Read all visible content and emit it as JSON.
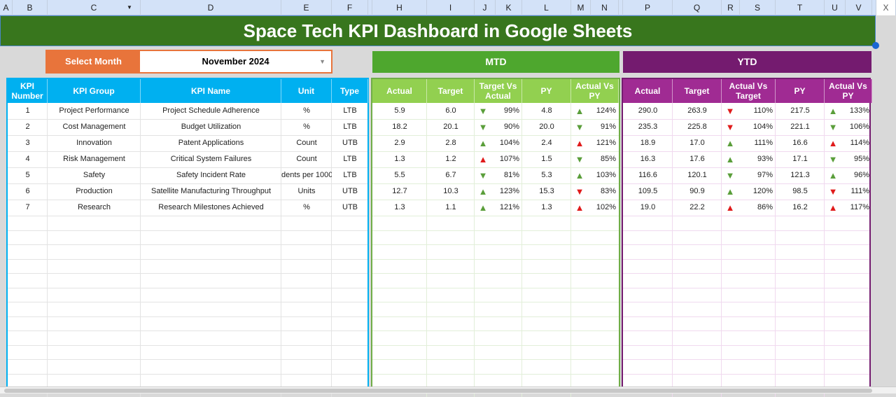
{
  "columns": [
    "A",
    "B",
    "C",
    "D",
    "E",
    "F",
    "",
    "H",
    "I",
    "J",
    "K",
    "L",
    "M",
    "N",
    "",
    "P",
    "Q",
    "R",
    "S",
    "T",
    "U",
    "V",
    "",
    "X"
  ],
  "title": "Space Tech KPI Dashboard in Google Sheets",
  "select_month": {
    "label": "Select Month",
    "value": "November 2024"
  },
  "mtd": {
    "label": "MTD",
    "color": "#4ea72e",
    "header_color": "#92d050",
    "headers": [
      "Actual",
      "Target",
      "Target Vs Actual",
      "PY",
      "Actual Vs PY"
    ]
  },
  "ytd": {
    "label": "YTD",
    "color": "#741b6f",
    "header_color": "#a02b93",
    "headers": [
      "Actual",
      "Target",
      "Actual Vs Target",
      "PY",
      "Actual Vs PY"
    ]
  },
  "kpi": {
    "header_color": "#00b0f0",
    "headers": [
      "KPI Number",
      "KPI Group",
      "KPI Name",
      "Unit",
      "Type"
    ]
  },
  "colors": {
    "green_arrow": "#5a9e3a",
    "red_arrow": "#e01b1b"
  },
  "rows": [
    {
      "num": "1",
      "group": "Project Performance",
      "name": "Project Schedule Adherence",
      "unit": "%",
      "type": "LTB",
      "mtd": [
        "5.9",
        "6.0",
        [
          "down",
          "green",
          "99%"
        ],
        "4.8",
        [
          "up",
          "green",
          "124%"
        ]
      ],
      "ytd": [
        "290.0",
        "263.9",
        [
          "down",
          "red",
          "110%"
        ],
        "217.5",
        [
          "up",
          "green",
          "133%"
        ]
      ]
    },
    {
      "num": "2",
      "group": "Cost Management",
      "name": "Budget Utilization",
      "unit": "%",
      "type": "LTB",
      "mtd": [
        "18.2",
        "20.1",
        [
          "down",
          "green",
          "90%"
        ],
        "20.0",
        [
          "down",
          "green",
          "91%"
        ]
      ],
      "ytd": [
        "235.3",
        "225.8",
        [
          "down",
          "red",
          "104%"
        ],
        "221.1",
        [
          "down",
          "green",
          "106%"
        ]
      ]
    },
    {
      "num": "3",
      "group": "Innovation",
      "name": "Patent Applications",
      "unit": "Count",
      "type": "UTB",
      "mtd": [
        "2.9",
        "2.8",
        [
          "up",
          "green",
          "104%"
        ],
        "2.4",
        [
          "up",
          "red",
          "121%"
        ]
      ],
      "ytd": [
        "18.9",
        "17.0",
        [
          "up",
          "green",
          "111%"
        ],
        "16.6",
        [
          "up",
          "red",
          "114%"
        ]
      ]
    },
    {
      "num": "4",
      "group": "Risk Management",
      "name": "Critical System Failures",
      "unit": "Count",
      "type": "LTB",
      "mtd": [
        "1.3",
        "1.2",
        [
          "up",
          "red",
          "107%"
        ],
        "1.5",
        [
          "down",
          "green",
          "85%"
        ]
      ],
      "ytd": [
        "16.3",
        "17.6",
        [
          "up",
          "green",
          "93%"
        ],
        "17.1",
        [
          "down",
          "green",
          "95%"
        ]
      ]
    },
    {
      "num": "5",
      "group": "Safety",
      "name": "Safety Incident Rate",
      "unit": "dents per 1000",
      "type": "LTB",
      "mtd": [
        "5.5",
        "6.7",
        [
          "down",
          "green",
          "81%"
        ],
        "5.3",
        [
          "up",
          "green",
          "103%"
        ]
      ],
      "ytd": [
        "116.6",
        "120.1",
        [
          "down",
          "green",
          "97%"
        ],
        "121.3",
        [
          "up",
          "green",
          "96%"
        ]
      ]
    },
    {
      "num": "6",
      "group": "Production",
      "name": "Satellite Manufacturing Throughput",
      "unit": "Units",
      "type": "UTB",
      "mtd": [
        "12.7",
        "10.3",
        [
          "up",
          "green",
          "123%"
        ],
        "15.3",
        [
          "down",
          "red",
          "83%"
        ]
      ],
      "ytd": [
        "109.5",
        "90.9",
        [
          "up",
          "green",
          "120%"
        ],
        "98.5",
        [
          "down",
          "red",
          "111%"
        ]
      ]
    },
    {
      "num": "7",
      "group": "Research",
      "name": "Research Milestones Achieved",
      "unit": "%",
      "type": "UTB",
      "mtd": [
        "1.3",
        "1.1",
        [
          "up",
          "green",
          "121%"
        ],
        "1.3",
        [
          "up",
          "red",
          "102%"
        ]
      ],
      "ytd": [
        "19.0",
        "22.2",
        [
          "up",
          "red",
          "86%"
        ],
        "16.2",
        [
          "up",
          "red",
          "117%"
        ]
      ]
    }
  ]
}
